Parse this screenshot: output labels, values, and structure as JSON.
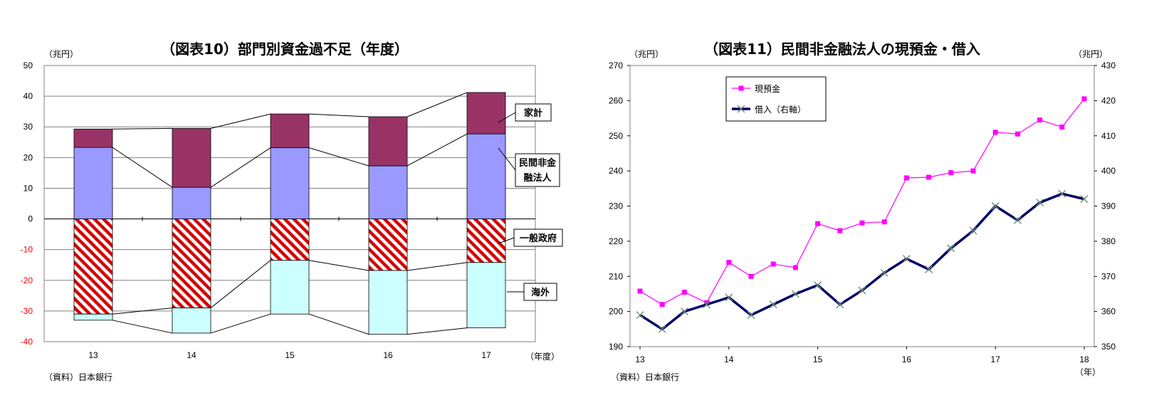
{
  "chart_data": [
    {
      "type": "bar",
      "title": "（図表10）部門別資金過不足（年度）",
      "ylabel": "（兆円）",
      "xlabel": "（年度）",
      "source": "（資料）日本銀行",
      "categories": [
        "13",
        "14",
        "15",
        "16",
        "17"
      ],
      "ylim": [
        -40,
        50
      ],
      "yticks": [
        50,
        40,
        30,
        20,
        10,
        0,
        -10,
        -20,
        -30,
        -40
      ],
      "stacked": true,
      "grid": true,
      "series": [
        {
          "name": "家計",
          "values": [
            6.0,
            19.2,
            11.0,
            16.0,
            13.5
          ],
          "color": "#993366"
        },
        {
          "name": "民間非金融法人",
          "values": [
            23.3,
            10.3,
            23.2,
            17.3,
            27.7
          ],
          "color": "#9999ff"
        },
        {
          "name": "一般政府",
          "values": [
            -31.0,
            -29.0,
            -13.5,
            -16.8,
            -14.2
          ],
          "color": "#cc0000",
          "pattern": "hatch"
        },
        {
          "name": "海外",
          "values": [
            -2.0,
            -8.2,
            -17.5,
            -20.8,
            -21.3
          ],
          "color": "#ccffff"
        }
      ],
      "callouts": [
        "家計",
        "民間非金融\n融法人",
        "一般政府",
        "海外"
      ]
    },
    {
      "type": "line",
      "title": "（図表11）民間非金融法人の現預金・借入",
      "ylabel_left": "（兆円）",
      "ylabel_right": "（兆円）",
      "xlabel": "（年）",
      "source": "（資料）日本銀行",
      "x_tick_labels": [
        "13",
        "14",
        "15",
        "16",
        "17",
        "18"
      ],
      "ylim_left": [
        190,
        270
      ],
      "ylim_right": [
        350,
        430
      ],
      "yticks_left": [
        270,
        260,
        250,
        240,
        230,
        220,
        210,
        200,
        190
      ],
      "yticks_right": [
        430,
        420,
        410,
        400,
        390,
        380,
        370,
        360,
        350
      ],
      "legend_position": "top-left",
      "series": [
        {
          "name": "現預金",
          "axis": "left",
          "color": "#ff00ff",
          "x": [
            "13Q1",
            "13Q2",
            "13Q3",
            "13Q4",
            "14Q1",
            "14Q2",
            "14Q3",
            "14Q4",
            "15Q1",
            "15Q2",
            "15Q3",
            "15Q4",
            "16Q1",
            "16Q2",
            "16Q3",
            "16Q4",
            "17Q1",
            "17Q2",
            "17Q3",
            "17Q4",
            "18Q1"
          ],
          "values": [
            205.8,
            202.0,
            205.5,
            202.5,
            214.0,
            210.0,
            213.5,
            212.5,
            225.0,
            223.0,
            225.2,
            225.5,
            238.0,
            238.2,
            239.5,
            240.0,
            251.0,
            250.5,
            254.5,
            252.5,
            260.5
          ]
        },
        {
          "name": "借入（右軸）",
          "axis": "right",
          "color": "#000066",
          "x": [
            "13Q1",
            "13Q2",
            "13Q3",
            "13Q4",
            "14Q1",
            "14Q2",
            "14Q3",
            "14Q4",
            "15Q1",
            "15Q2",
            "15Q3",
            "15Q4",
            "16Q1",
            "16Q2",
            "16Q3",
            "16Q4",
            "17Q1",
            "17Q2",
            "17Q3",
            "17Q4",
            "18Q1"
          ],
          "values": [
            359.0,
            355.0,
            360.0,
            362.0,
            364.0,
            359.0,
            362.0,
            365.0,
            367.5,
            362.0,
            366.0,
            371.0,
            375.0,
            372.0,
            378.0,
            383.0,
            390.0,
            386.0,
            391.0,
            393.5,
            392.0
          ]
        }
      ]
    }
  ]
}
